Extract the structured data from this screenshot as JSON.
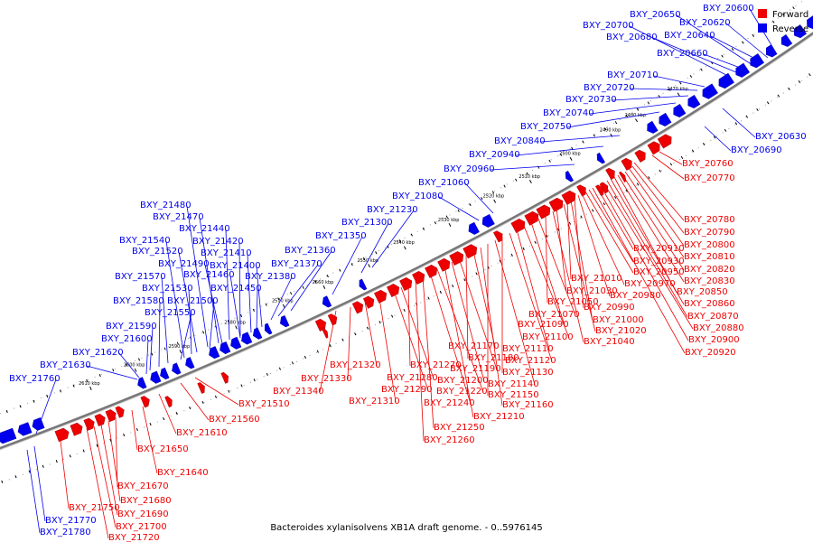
{
  "caption": "Bacteroides xylanisolvens XB1A draft genome. - 0..5976145",
  "legend": [
    {
      "label": "Forward",
      "color": "#ee0000"
    },
    {
      "label": "Reverse",
      "color": "#0000ee"
    }
  ],
  "colors": {
    "forward": "#ee0000",
    "reverse": "#0000ee",
    "backbone": "#888888"
  },
  "kbp_labels": [
    "2470 kbp",
    "2480 kbp",
    "2490 kbp",
    "2500 kbp",
    "2510 kbp",
    "2520 kbp",
    "2530 kbp",
    "2540 kbp",
    "2550 kbp",
    "2560 kbp",
    "2570 kbp",
    "2580 kbp",
    "2590 kbp",
    "2600 kbp",
    "2610 kbp"
  ],
  "reverse_genes": [
    "BXY_20600",
    "BXY_20620",
    "BXY_20630",
    "BXY_20640",
    "BXY_20650",
    "BXY_20660",
    "BXY_20680",
    "BXY_20690",
    "BXY_20700",
    "BXY_20710",
    "BXY_20720",
    "BXY_20730",
    "BXY_20740",
    "BXY_20750",
    "BXY_20840",
    "BXY_20940",
    "BXY_20960",
    "BXY_21060",
    "BXY_21080",
    "BXY_21230",
    "BXY_21300",
    "BXY_21350",
    "BXY_21360",
    "BXY_21370",
    "BXY_21380",
    "BXY_21400",
    "BXY_21410",
    "BXY_21420",
    "BXY_21440",
    "BXY_21450",
    "BXY_21460",
    "BXY_21470",
    "BXY_21480",
    "BXY_21490",
    "BXY_21500",
    "BXY_21520",
    "BXY_21530",
    "BXY_21540",
    "BXY_21550",
    "BXY_21570",
    "BXY_21580",
    "BXY_21590",
    "BXY_21600",
    "BXY_21620",
    "BXY_21630",
    "BXY_21760",
    "BXY_21770",
    "BXY_21780"
  ],
  "forward_genes": [
    "BXY_20760",
    "BXY_20770",
    "BXY_20780",
    "BXY_20790",
    "BXY_20800",
    "BXY_20810",
    "BXY_20820",
    "BXY_20830",
    "BXY_20850",
    "BXY_20860",
    "BXY_20870",
    "BXY_20880",
    "BXY_20900",
    "BXY_20910",
    "BXY_20920",
    "BXY_20930",
    "BXY_20950",
    "BXY_20970",
    "BXY_20980",
    "BXY_20990",
    "BXY_21000",
    "BXY_21010",
    "BXY_21020",
    "BXY_21030",
    "BXY_21040",
    "BXY_21050",
    "BXY_21070",
    "BXY_21090",
    "BXY_21100",
    "BXY_21110",
    "BXY_21120",
    "BXY_21130",
    "BXY_21140",
    "BXY_21150",
    "BXY_21160",
    "BXY_21170",
    "BXY_21180",
    "BXY_21190",
    "BXY_21200",
    "BXY_21210",
    "BXY_21220",
    "BXY_21240",
    "BXY_21250",
    "BXY_21260",
    "BXY_21270",
    "BXY_21280",
    "BXY_21290",
    "BXY_21310",
    "BXY_21320",
    "BXY_21330",
    "BXY_21340",
    "BXY_21510",
    "BXY_21560",
    "BXY_21610",
    "BXY_21640",
    "BXY_21650",
    "BXY_21670",
    "BXY_21680",
    "BXY_21690",
    "BXY_21700",
    "BXY_21720",
    "BXY_21750"
  ]
}
